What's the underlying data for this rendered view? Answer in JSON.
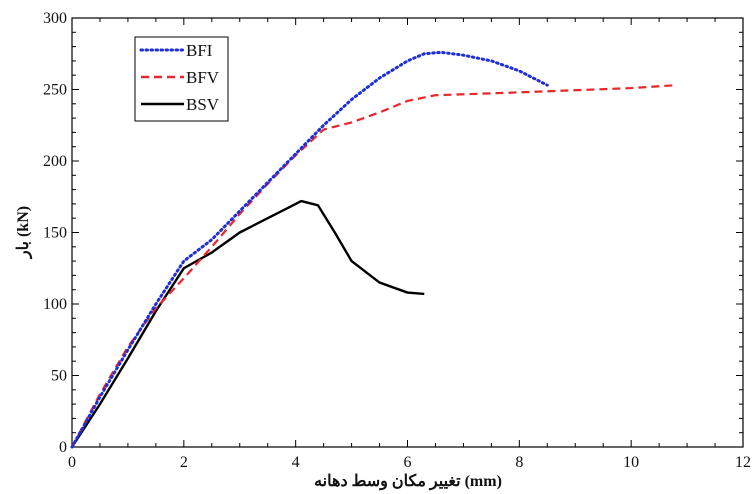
{
  "chart_data": {
    "type": "line",
    "title": "",
    "xlabel": "تغییر مکان وسط دهانه (mm)",
    "ylabel": "بار (kN)",
    "xlim": [
      0,
      12
    ],
    "ylim": [
      0,
      300
    ],
    "xticks": [
      0,
      2,
      4,
      6,
      8,
      10,
      12
    ],
    "yticks": [
      0,
      50,
      100,
      150,
      200,
      250,
      300
    ],
    "grid": false,
    "legend_position": "top-left",
    "series": [
      {
        "name": "BFI",
        "color": "#1f2fd6",
        "style": "dotted",
        "x": [
          0,
          0.5,
          1.0,
          1.5,
          2.0,
          2.5,
          3.0,
          3.5,
          4.0,
          4.5,
          5.0,
          5.5,
          6.0,
          6.3,
          6.6,
          7.0,
          7.5,
          8.0,
          8.5
        ],
        "y": [
          0,
          35,
          68,
          100,
          130,
          145,
          165,
          185,
          205,
          225,
          243,
          258,
          270,
          275,
          276,
          274,
          270,
          263,
          253
        ]
      },
      {
        "name": "BFV",
        "color": "#e8262b",
        "style": "dashed",
        "x": [
          0,
          0.5,
          1.0,
          1.5,
          2.0,
          2.5,
          3.0,
          3.5,
          4.0,
          4.5,
          5.0,
          5.5,
          6.0,
          6.5,
          8.0,
          10.0,
          10.8
        ],
        "y": [
          0,
          37,
          70,
          97,
          118,
          140,
          163,
          184,
          204,
          222,
          227,
          234,
          242,
          246,
          248,
          251,
          253
        ]
      },
      {
        "name": "BSV",
        "color": "#000000",
        "style": "solid",
        "x": [
          0,
          0.5,
          1.0,
          1.5,
          2.0,
          2.5,
          3.0,
          3.5,
          3.9,
          4.1,
          4.4,
          4.7,
          5.0,
          5.5,
          6.0,
          6.3
        ],
        "y": [
          0,
          30,
          62,
          95,
          125,
          136,
          150,
          160,
          168,
          172,
          169,
          150,
          130,
          115,
          108,
          107
        ]
      }
    ]
  }
}
